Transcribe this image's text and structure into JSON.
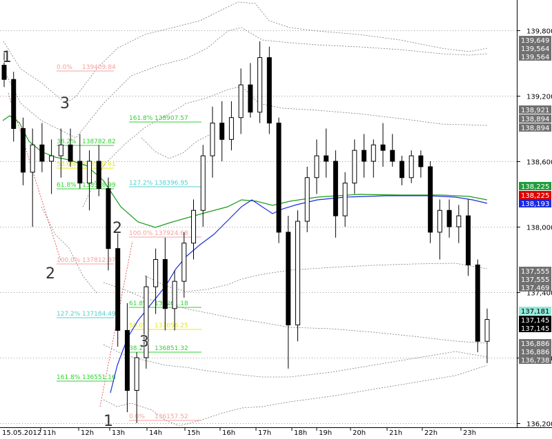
{
  "chart_data": {
    "type": "candlestick",
    "x_start_label": "15.05.2012",
    "x_tick_labels": [
      "11h",
      "12h",
      "13h",
      "14h",
      "15h",
      "16h",
      "17h",
      "18h",
      "19h",
      "20h",
      "21h",
      "22h",
      "23h"
    ],
    "y_axis_labels": [
      "139,800",
      "139,200",
      "138,600",
      "138,000",
      "137,400",
      "136,800",
      "136,200"
    ],
    "ylim": [
      136150,
      140100
    ],
    "price_tags": [
      {
        "value": "139,649",
        "color": "#707070"
      },
      {
        "value": "139,564",
        "color": "#707070"
      },
      {
        "value": "139,564",
        "color": "#707070"
      },
      {
        "value": "138,921",
        "color": "#707070"
      },
      {
        "value": "138,894",
        "color": "#707070"
      },
      {
        "value": "138,894",
        "color": "#707070"
      },
      {
        "value": "138,225",
        "color": "#1f9d3a"
      },
      {
        "value": "138,225",
        "color": "#e00000"
      },
      {
        "value": "138,193",
        "color": "#1a2be0"
      },
      {
        "value": "137,555",
        "color": "#707070"
      },
      {
        "value": "137,555",
        "color": "#707070"
      },
      {
        "value": "137,469",
        "color": "#707070"
      },
      {
        "value": "137,181",
        "color": "#90e8d8"
      },
      {
        "value": "137,145",
        "color": "#000000"
      },
      {
        "value": "137,145",
        "color": "#000000"
      },
      {
        "value": "136,886",
        "color": "#707070"
      },
      {
        "value": "136,886",
        "color": "#707070"
      },
      {
        "value": "136,738",
        "color": "#707070"
      }
    ],
    "wave_labels": [
      "1",
      "3",
      "2",
      "2",
      "3",
      "1"
    ],
    "fib_levels": [
      {
        "pct": "0.0%",
        "price": "139409.84",
        "color": "#f4a0a0"
      },
      {
        "pct": "161.8%",
        "price": "138907.57",
        "color": "#2fd22f"
      },
      {
        "pct": "38.2%",
        "price": "138782.82",
        "color": "#2fd22f"
      },
      {
        "pct": "50.0%",
        "price": "138570.61",
        "color": "#e8e800"
      },
      {
        "pct": "61.8%",
        "price": "138358.99",
        "color": "#2fd22f"
      },
      {
        "pct": "127.2%",
        "price": "138396.95",
        "color": "#4fd0d0"
      },
      {
        "pct": "100.0%",
        "price": "137924.68",
        "color": "#f4a0a0"
      },
      {
        "pct": "100.0%",
        "price": "137812.97",
        "color": "#f4a0a0"
      },
      {
        "pct": "61.8%",
        "price": "137261.18",
        "color": "#2fd22f"
      },
      {
        "pct": "127.2%",
        "price": "137184.49",
        "color": "#4fd0d0"
      },
      {
        "pct": "50.0%",
        "price": "137056.25",
        "color": "#e8e800"
      },
      {
        "pct": "38.2%",
        "price": "136851.32",
        "color": "#2fd22f"
      },
      {
        "pct": "161.8%",
        "price": "136551.16",
        "color": "#2fd22f"
      },
      {
        "pct": "0.0%",
        "price": "136157.52",
        "color": "#f4a0a0"
      }
    ],
    "moving_averages": [
      {
        "color": "#1a9a1a"
      },
      {
        "color": "#1a2be0"
      }
    ],
    "candles": [
      {
        "o": 139480,
        "h": 139600,
        "l": 139280,
        "c": 139350
      },
      {
        "o": 139350,
        "h": 139420,
        "l": 138780,
        "c": 138900
      },
      {
        "o": 138900,
        "h": 139000,
        "l": 138380,
        "c": 138500
      },
      {
        "o": 138500,
        "h": 138900,
        "l": 138000,
        "c": 138750
      },
      {
        "o": 138750,
        "h": 138950,
        "l": 138500,
        "c": 138600
      },
      {
        "o": 138600,
        "h": 138800,
        "l": 138300,
        "c": 138650
      },
      {
        "o": 138650,
        "h": 138900,
        "l": 138450,
        "c": 138750
      },
      {
        "o": 138750,
        "h": 138900,
        "l": 138550,
        "c": 138600
      },
      {
        "o": 138600,
        "h": 138850,
        "l": 138350,
        "c": 138400
      },
      {
        "o": 138400,
        "h": 138700,
        "l": 138150,
        "c": 138600
      },
      {
        "o": 138600,
        "h": 138750,
        "l": 138280,
        "c": 138350
      },
      {
        "o": 138350,
        "h": 138450,
        "l": 137600,
        "c": 137800
      },
      {
        "o": 137800,
        "h": 137950,
        "l": 136900,
        "c": 137050
      },
      {
        "o": 137050,
        "h": 137300,
        "l": 136300,
        "c": 136500
      },
      {
        "o": 136500,
        "h": 136850,
        "l": 136200,
        "c": 136800
      },
      {
        "o": 136800,
        "h": 137550,
        "l": 136700,
        "c": 137450
      },
      {
        "o": 137450,
        "h": 137800,
        "l": 137200,
        "c": 137700
      },
      {
        "o": 137700,
        "h": 137900,
        "l": 137050,
        "c": 137250
      },
      {
        "o": 137250,
        "h": 137600,
        "l": 137050,
        "c": 137500
      },
      {
        "o": 137500,
        "h": 137950,
        "l": 137350,
        "c": 137850
      },
      {
        "o": 137850,
        "h": 138250,
        "l": 137700,
        "c": 138150
      },
      {
        "o": 138150,
        "h": 138750,
        "l": 138000,
        "c": 138650
      },
      {
        "o": 138650,
        "h": 139100,
        "l": 138450,
        "c": 138950
      },
      {
        "o": 138950,
        "h": 139150,
        "l": 138600,
        "c": 138800
      },
      {
        "o": 138800,
        "h": 139150,
        "l": 138700,
        "c": 139000
      },
      {
        "o": 139000,
        "h": 139450,
        "l": 138850,
        "c": 139300
      },
      {
        "o": 139300,
        "h": 139500,
        "l": 139000,
        "c": 139050
      },
      {
        "o": 139050,
        "h": 139700,
        "l": 138950,
        "c": 139550
      },
      {
        "o": 139550,
        "h": 139650,
        "l": 138850,
        "c": 138950
      },
      {
        "o": 138950,
        "h": 139000,
        "l": 137850,
        "c": 137950
      },
      {
        "o": 137950,
        "h": 138100,
        "l": 136700,
        "c": 137100
      },
      {
        "o": 137100,
        "h": 138150,
        "l": 136950,
        "c": 138050
      },
      {
        "o": 138050,
        "h": 138550,
        "l": 137950,
        "c": 138450
      },
      {
        "o": 138450,
        "h": 138800,
        "l": 138300,
        "c": 138650
      },
      {
        "o": 138650,
        "h": 138900,
        "l": 138450,
        "c": 138600
      },
      {
        "o": 138600,
        "h": 138700,
        "l": 137900,
        "c": 138100
      },
      {
        "o": 138100,
        "h": 138500,
        "l": 138000,
        "c": 138400
      },
      {
        "o": 138400,
        "h": 138800,
        "l": 138300,
        "c": 138700
      },
      {
        "o": 138700,
        "h": 138850,
        "l": 138450,
        "c": 138600
      },
      {
        "o": 138600,
        "h": 138800,
        "l": 138450,
        "c": 138750
      },
      {
        "o": 138750,
        "h": 138950,
        "l": 138550,
        "c": 138700
      },
      {
        "o": 138700,
        "h": 138850,
        "l": 138550,
        "c": 138600
      },
      {
        "o": 138600,
        "h": 138650,
        "l": 138380,
        "c": 138450
      },
      {
        "o": 138450,
        "h": 138700,
        "l": 138400,
        "c": 138650
      },
      {
        "o": 138650,
        "h": 138700,
        "l": 138450,
        "c": 138550
      },
      {
        "o": 138550,
        "h": 138600,
        "l": 137850,
        "c": 137950
      },
      {
        "o": 137950,
        "h": 138250,
        "l": 137700,
        "c": 138150
      },
      {
        "o": 138150,
        "h": 138250,
        "l": 137900,
        "c": 138000
      },
      {
        "o": 138000,
        "h": 138200,
        "l": 137850,
        "c": 138100
      },
      {
        "o": 138100,
        "h": 138250,
        "l": 137550,
        "c": 137650
      },
      {
        "o": 137650,
        "h": 137700,
        "l": 136850,
        "c": 136950
      },
      {
        "o": 136950,
        "h": 137250,
        "l": 136750,
        "c": 137150
      }
    ]
  }
}
